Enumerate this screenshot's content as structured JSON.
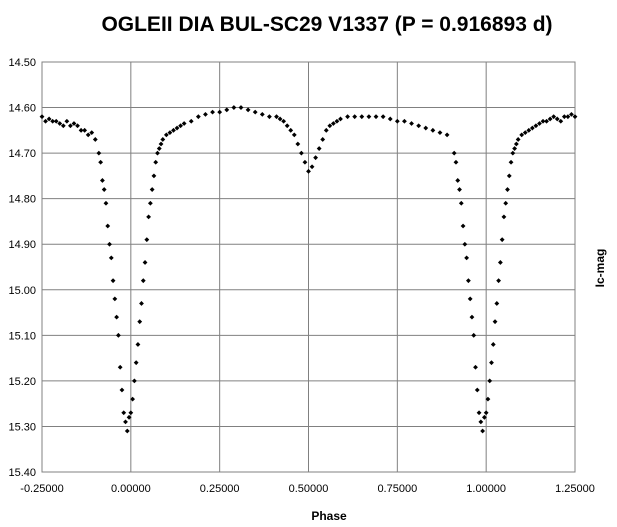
{
  "chart_data": {
    "type": "scatter",
    "title": "OGLEII DIA BUL-SC29  V1337 (P = 0.916893    d)",
    "xlabel": "Phase",
    "ylabel": "Ic-mag",
    "xlim": [
      -0.25,
      1.25
    ],
    "ylim": [
      14.5,
      15.4
    ],
    "y_inverted": true,
    "grid": true,
    "legend": "none",
    "marker": "diamond",
    "marker_color": "#000000",
    "xticks": [
      "-0.25000",
      "0.00000",
      "0.25000",
      "0.50000",
      "0.75000",
      "1.00000",
      "1.25000"
    ],
    "yticks": [
      "14.50",
      "14.60",
      "14.70",
      "14.80",
      "14.90",
      "15.00",
      "15.10",
      "15.20",
      "15.30",
      "15.40"
    ],
    "xtick_values": [
      -0.25,
      0,
      0.25,
      0.5,
      0.75,
      1.0,
      1.25
    ],
    "ytick_values": [
      14.5,
      14.6,
      14.7,
      14.8,
      14.9,
      15.0,
      15.1,
      15.2,
      15.3,
      15.4
    ],
    "series": [
      {
        "x": [
          -0.25,
          -0.24,
          -0.23,
          -0.22,
          -0.21,
          -0.2,
          -0.19,
          -0.18,
          -0.17,
          -0.16,
          -0.15,
          -0.14,
          -0.13,
          -0.12,
          -0.11,
          -0.1,
          -0.09,
          -0.085,
          -0.08,
          -0.075,
          -0.07,
          -0.065,
          -0.06,
          -0.055,
          -0.05,
          -0.045,
          -0.04,
          -0.035,
          -0.03,
          -0.025,
          -0.02,
          -0.015,
          -0.01,
          -0.005,
          0.0,
          0.005,
          0.01,
          0.015,
          0.02,
          0.025,
          0.03,
          0.035,
          0.04,
          0.045,
          0.05,
          0.055,
          0.06,
          0.065,
          0.07,
          0.075,
          0.08,
          0.085,
          0.09,
          0.1,
          0.11,
          0.12,
          0.13,
          0.14,
          0.15,
          0.17,
          0.19,
          0.21,
          0.23,
          0.25,
          0.27,
          0.29,
          0.31,
          0.33,
          0.35,
          0.37,
          0.39,
          0.41,
          0.42,
          0.43,
          0.44,
          0.45,
          0.46,
          0.47,
          0.48,
          0.49,
          0.5,
          0.51,
          0.52,
          0.53,
          0.54,
          0.55,
          0.56,
          0.57,
          0.58,
          0.59,
          0.61,
          0.63,
          0.65,
          0.67,
          0.69,
          0.71,
          0.73,
          0.75,
          0.77,
          0.79,
          0.81,
          0.83,
          0.85,
          0.87,
          0.89,
          0.91,
          0.915,
          0.92,
          0.925,
          0.93,
          0.935,
          0.94,
          0.945,
          0.95,
          0.955,
          0.96,
          0.965,
          0.97,
          0.975,
          0.98,
          0.985,
          0.99,
          0.995,
          1.0,
          1.005,
          1.01,
          1.015,
          1.02,
          1.025,
          1.03,
          1.035,
          1.04,
          1.045,
          1.05,
          1.055,
          1.06,
          1.065,
          1.07,
          1.075,
          1.08,
          1.085,
          1.09,
          1.1,
          1.11,
          1.12,
          1.13,
          1.14,
          1.15,
          1.16,
          1.17,
          1.18,
          1.19,
          1.2,
          1.21,
          1.22,
          1.23,
          1.24,
          1.25
        ],
        "y": [
          14.62,
          14.63,
          14.625,
          14.63,
          14.63,
          14.635,
          14.64,
          14.63,
          14.64,
          14.635,
          14.64,
          14.65,
          14.65,
          14.66,
          14.655,
          14.67,
          14.7,
          14.72,
          14.76,
          14.78,
          14.81,
          14.86,
          14.9,
          14.93,
          14.98,
          15.02,
          15.06,
          15.1,
          15.17,
          15.22,
          15.27,
          15.29,
          15.31,
          15.28,
          15.27,
          15.24,
          15.2,
          15.16,
          15.12,
          15.07,
          15.03,
          14.98,
          14.94,
          14.89,
          14.84,
          14.81,
          14.78,
          14.75,
          14.72,
          14.7,
          14.69,
          14.68,
          14.67,
          14.66,
          14.655,
          14.65,
          14.645,
          14.64,
          14.635,
          14.63,
          14.62,
          14.615,
          14.61,
          14.61,
          14.605,
          14.6,
          14.6,
          14.605,
          14.61,
          14.615,
          14.62,
          14.62,
          14.625,
          14.63,
          14.64,
          14.65,
          14.66,
          14.68,
          14.7,
          14.72,
          14.74,
          14.73,
          14.71,
          14.69,
          14.67,
          14.65,
          14.64,
          14.635,
          14.63,
          14.625,
          14.62,
          14.62,
          14.62,
          14.62,
          14.62,
          14.62,
          14.625,
          14.63,
          14.63,
          14.635,
          14.64,
          14.645,
          14.65,
          14.655,
          14.66,
          14.7,
          14.72,
          14.76,
          14.78,
          14.81,
          14.86,
          14.9,
          14.93,
          14.98,
          15.02,
          15.06,
          15.1,
          15.17,
          15.22,
          15.27,
          15.29,
          15.31,
          15.28,
          15.27,
          15.24,
          15.2,
          15.16,
          15.12,
          15.07,
          15.03,
          14.98,
          14.94,
          14.89,
          14.84,
          14.81,
          14.78,
          14.75,
          14.72,
          14.7,
          14.69,
          14.68,
          14.67,
          14.66,
          14.655,
          14.65,
          14.645,
          14.64,
          14.635,
          14.63,
          14.63,
          14.625,
          14.62,
          14.625,
          14.63,
          14.62,
          14.62,
          14.615,
          14.62
        ]
      }
    ]
  }
}
